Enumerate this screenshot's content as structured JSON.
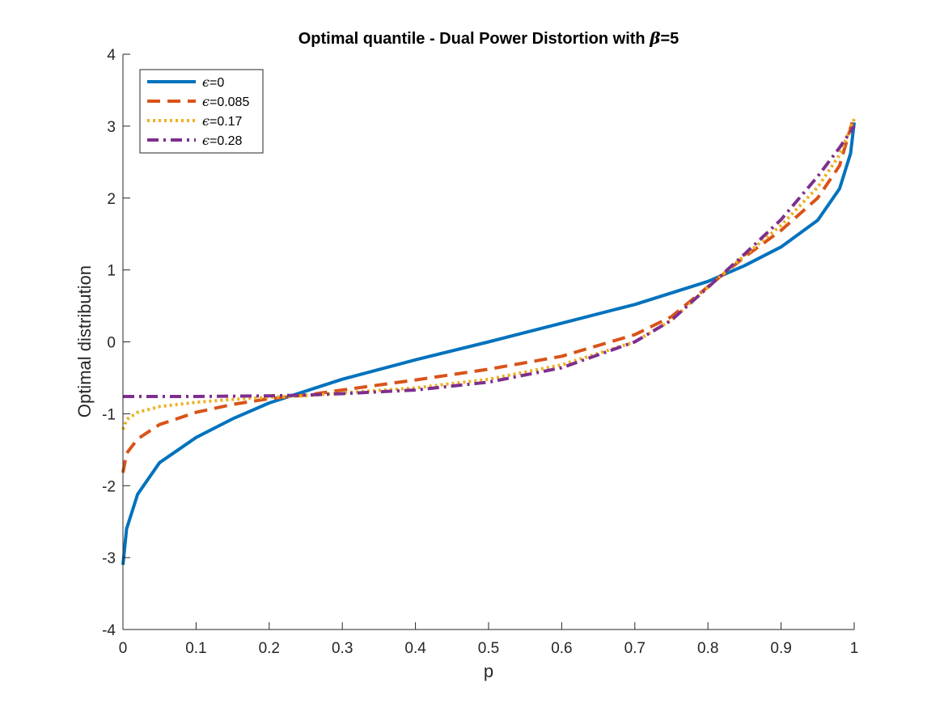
{
  "chart_data": {
    "type": "line",
    "title": {
      "prefix": "Optimal quantile - Dual Power Distortion with ",
      "symbol": "β",
      "suffix": "=5"
    },
    "xlabel": "p",
    "ylabel": "Optimal distribution",
    "xlim": [
      0,
      1
    ],
    "ylim": [
      -4,
      4
    ],
    "xticks": [
      "0",
      "0.1",
      "0.2",
      "0.3",
      "0.4",
      "0.5",
      "0.6",
      "0.7",
      "0.8",
      "0.9",
      "1"
    ],
    "yticks": [
      "-4",
      "-3",
      "-2",
      "-1",
      "0",
      "1",
      "2",
      "3",
      "4"
    ],
    "grid": false,
    "legend_position": "top-left",
    "series": [
      {
        "name": "ϵ=0",
        "symbol": "ϵ",
        "value_text": "=0",
        "color": "#0072BD",
        "style": "solid",
        "x": [
          0,
          0.005,
          0.02,
          0.05,
          0.1,
          0.15,
          0.2,
          0.23,
          0.3,
          0.4,
          0.5,
          0.6,
          0.7,
          0.8,
          0.85,
          0.9,
          0.95,
          0.98,
          0.995,
          1.0
        ],
        "y": [
          -3.1,
          -2.6,
          -2.12,
          -1.68,
          -1.33,
          -1.07,
          -0.85,
          -0.75,
          -0.52,
          -0.25,
          0.0,
          0.26,
          0.52,
          0.84,
          1.06,
          1.32,
          1.69,
          2.13,
          2.62,
          3.05
        ]
      },
      {
        "name": "ϵ=0.085",
        "symbol": "ϵ",
        "value_text": "=0.085",
        "color": "#D95319",
        "style": "dashed",
        "x": [
          0,
          0.005,
          0.02,
          0.05,
          0.1,
          0.15,
          0.2,
          0.25,
          0.3,
          0.4,
          0.5,
          0.6,
          0.7,
          0.75,
          0.81,
          0.85,
          0.9,
          0.95,
          0.98,
          1.0
        ],
        "y": [
          -1.82,
          -1.55,
          -1.35,
          -1.15,
          -0.98,
          -0.87,
          -0.79,
          -0.74,
          -0.67,
          -0.53,
          -0.38,
          -0.2,
          0.1,
          0.35,
          0.85,
          1.18,
          1.55,
          2.0,
          2.45,
          3.15
        ]
      },
      {
        "name": "ϵ=0.17",
        "symbol": "ϵ",
        "value_text": "=0.17",
        "color": "#EDB120",
        "style": "dotted",
        "x": [
          0,
          0.005,
          0.02,
          0.05,
          0.1,
          0.15,
          0.2,
          0.25,
          0.3,
          0.4,
          0.5,
          0.6,
          0.7,
          0.75,
          0.81,
          0.85,
          0.9,
          0.95,
          0.98,
          1.0
        ],
        "y": [
          -1.22,
          -1.08,
          -0.98,
          -0.9,
          -0.84,
          -0.8,
          -0.77,
          -0.75,
          -0.71,
          -0.64,
          -0.52,
          -0.32,
          0.0,
          0.3,
          0.85,
          1.2,
          1.62,
          2.15,
          2.6,
          3.1
        ]
      },
      {
        "name": "ϵ=0.28",
        "symbol": "ϵ",
        "value_text": "=0.28",
        "color": "#7E2F8E",
        "style": "dashdot",
        "x": [
          0,
          0.1,
          0.2,
          0.25,
          0.3,
          0.4,
          0.5,
          0.6,
          0.7,
          0.75,
          0.81,
          0.85,
          0.9,
          0.95,
          0.98,
          1.0
        ],
        "y": [
          -0.76,
          -0.76,
          -0.75,
          -0.74,
          -0.72,
          -0.67,
          -0.56,
          -0.36,
          0.0,
          0.3,
          0.85,
          1.22,
          1.7,
          2.3,
          2.7,
          3.0
        ]
      }
    ]
  }
}
